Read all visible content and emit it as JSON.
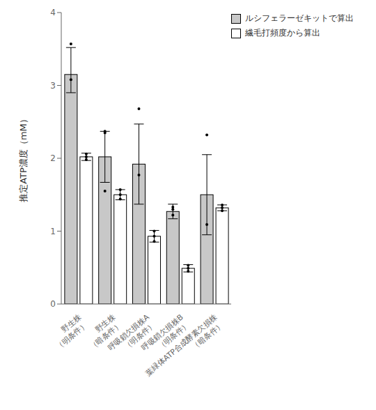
{
  "chart_data": {
    "type": "bar",
    "categories": [
      "野生株\n（明条件）",
      "野生株\n（暗条件）",
      "呼吸鎖欠損株A\n（明条件）",
      "呼吸鎖欠損株B\n（明条件）",
      "葉緑体ATP合成酵素欠損株\n（暗条件）"
    ],
    "series": [
      {
        "name": "ルシフェラーゼキットで算出",
        "color": "#c8c8c8",
        "values": [
          3.15,
          2.02,
          1.92,
          1.27,
          1.5
        ],
        "errors_up": [
          0.37,
          0.35,
          0.55,
          0.1,
          0.55
        ],
        "errors_down": [
          0.25,
          0.35,
          0.55,
          0.1,
          0.55
        ],
        "points": [
          [
            3.08,
            3.57
          ],
          [
            1.55,
            2.35,
            2.37
          ],
          [
            1.77,
            2.68
          ],
          [
            1.22,
            1.3,
            1.33
          ],
          [
            1.09,
            2.32
          ]
        ]
      },
      {
        "name": "繊毛打頻度から算出",
        "color": "#ffffff",
        "values": [
          2.02,
          1.5,
          0.93,
          0.49,
          1.32
        ],
        "errors": [
          0.05,
          0.07,
          0.08,
          0.05,
          0.04
        ],
        "points": [
          [
            1.98,
            2.02,
            2.06
          ],
          [
            1.44,
            1.5,
            1.57
          ],
          [
            0.86,
            0.93,
            1.0
          ],
          [
            0.45,
            0.49,
            0.53
          ],
          [
            1.28,
            1.32,
            1.36
          ]
        ]
      }
    ],
    "ylabel": "推定ATP濃度（mM）",
    "ylim": [
      0,
      4
    ],
    "yticks": [
      0,
      1,
      2,
      3,
      4
    ],
    "legend": "upper right",
    "grid": false
  }
}
